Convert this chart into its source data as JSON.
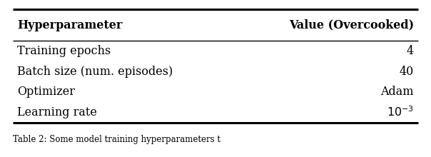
{
  "col_headers": [
    "Hyperparameter",
    "Value (Overcooked)"
  ],
  "rows": [
    [
      "Training epochs",
      "4"
    ],
    [
      "Batch size (num. episodes)",
      "40"
    ],
    [
      "Optimizer",
      "Adam"
    ],
    [
      "Learning rate",
      "$10^{-3}$"
    ]
  ],
  "fig_width": 6.04,
  "fig_height": 2.2,
  "dpi": 100,
  "background_color": "#ffffff",
  "text_color": "#000000",
  "header_fontsize": 11.5,
  "cell_fontsize": 11.5,
  "caption_fontsize": 8.5,
  "caption_text": "Table 2: Some model training hyperparameters t"
}
